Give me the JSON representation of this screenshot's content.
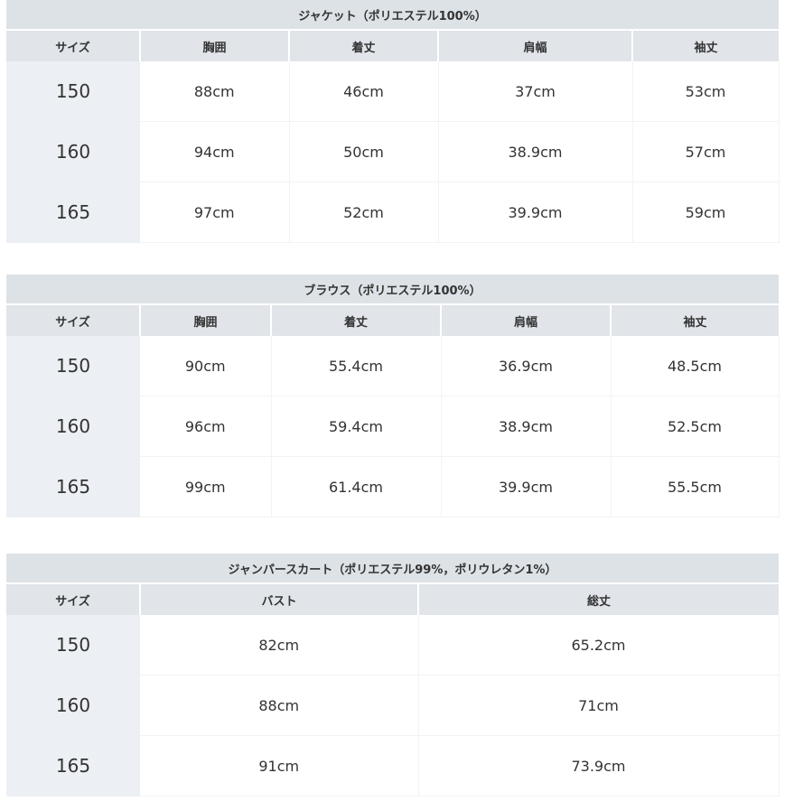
{
  "tables": [
    {
      "title": "ジャケット（ポリエステル100%）",
      "headers": [
        "サイズ",
        "胸囲",
        "着丈",
        "肩幅",
        "袖丈"
      ],
      "rows": [
        [
          "150",
          "88cm",
          "46cm",
          "37cm",
          "53cm"
        ],
        [
          "160",
          "94cm",
          "50cm",
          "38.9cm",
          "57cm"
        ],
        [
          "165",
          "97cm",
          "52cm",
          "39.9cm",
          "59cm"
        ]
      ]
    },
    {
      "title": "ブラウス（ポリエステル100%）",
      "headers": [
        "サイズ",
        "胸囲",
        "着丈",
        "肩幅",
        "袖丈"
      ],
      "rows": [
        [
          "150",
          "90cm",
          "55.4cm",
          "36.9cm",
          "48.5cm"
        ],
        [
          "160",
          "96cm",
          "59.4cm",
          "38.9cm",
          "52.5cm"
        ],
        [
          "165",
          "99cm",
          "61.4cm",
          "39.9cm",
          "55.5cm"
        ]
      ]
    },
    {
      "title": "ジャンパースカート（ポリエステル99%，ポリウレタン1%）",
      "headers": [
        "サイズ",
        "バスト",
        "総丈"
      ],
      "rows": [
        [
          "150",
          "82cm",
          "65.2cm"
        ],
        [
          "160",
          "88cm",
          "71cm"
        ],
        [
          "165",
          "91cm",
          "73.9cm"
        ]
      ]
    }
  ]
}
